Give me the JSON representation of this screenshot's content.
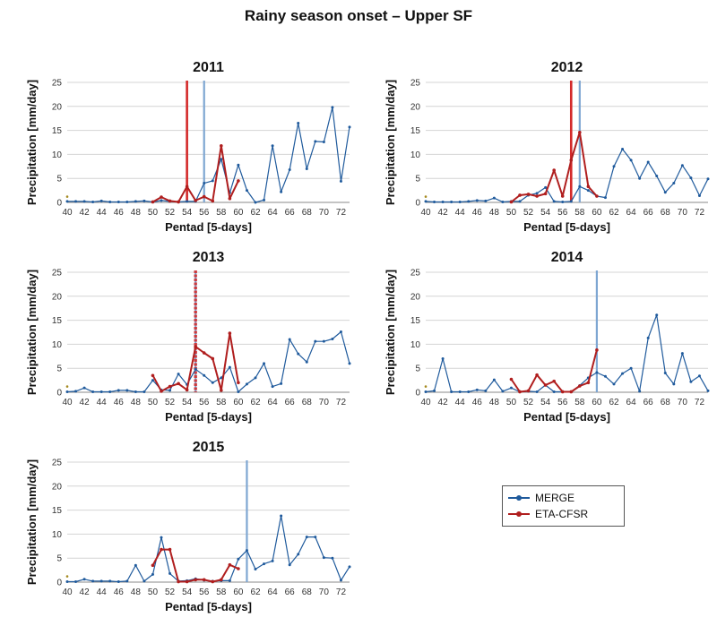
{
  "page": {
    "title": "Rainy season onset – Upper SF"
  },
  "colors": {
    "merge": "#1f5a9c",
    "eta": "#b01e1e",
    "merge_onset": "#7ea6d2",
    "eta_onset": "#d42a2a",
    "star": "#a58a1f"
  },
  "legend": {
    "merge_label": "MERGE",
    "eta_label": "ETA-CFSR"
  },
  "chart_data": [
    {
      "type": "line",
      "title": "2011",
      "xlabel": "Pentad [5-days]",
      "ylabel": "Precipitation [mm/day]",
      "xlim": [
        40,
        73
      ],
      "ylim": [
        0,
        25
      ],
      "xticks": [
        "40",
        "42",
        "44",
        "46",
        "48",
        "50",
        "52",
        "54",
        "56",
        "58",
        "60",
        "62",
        "64",
        "66",
        "68",
        "70",
        "72"
      ],
      "yticks": [
        "0",
        "5",
        "10",
        "15",
        "20",
        "25"
      ],
      "grid": true,
      "series": [
        {
          "name": "MERGE",
          "x": [
            40,
            41,
            42,
            43,
            44,
            45,
            46,
            47,
            48,
            49,
            50,
            51,
            52,
            53,
            54,
            55,
            56,
            57,
            58,
            59,
            60,
            61,
            62,
            63,
            64,
            65,
            66,
            67,
            68,
            69,
            70,
            71,
            72,
            73
          ],
          "values": [
            0.2,
            0.2,
            0.2,
            0.1,
            0.3,
            0.1,
            0.1,
            0.1,
            0.2,
            0.3,
            0.1,
            0.4,
            0.2,
            0.1,
            0.2,
            0.2,
            4,
            4.5,
            9,
            2,
            7.8,
            2.5,
            0,
            0.5,
            11.8,
            2.2,
            6.8,
            16.5,
            7,
            12.7,
            12.6,
            19.8,
            4.4,
            15.7
          ]
        },
        {
          "name": "ETA-CFSR",
          "x": [
            50,
            51,
            52,
            53,
            54,
            55,
            56,
            57,
            58,
            59,
            60
          ],
          "values": [
            0.1,
            1.1,
            0.3,
            0.1,
            3.3,
            0.4,
            1.2,
            0.3,
            11.8,
            0.8,
            4.5
          ]
        }
      ],
      "onset": {
        "MERGE": 56,
        "ETA-CFSR": 54
      }
    },
    {
      "type": "line",
      "title": "2012",
      "xlabel": "Pentad [5-days]",
      "ylabel": "Precipitation [mm/day]",
      "xlim": [
        40,
        73
      ],
      "ylim": [
        0,
        25
      ],
      "xticks": [
        "40",
        "42",
        "44",
        "46",
        "48",
        "50",
        "52",
        "54",
        "56",
        "58",
        "60",
        "62",
        "64",
        "66",
        "68",
        "70",
        "72"
      ],
      "yticks": [
        "0",
        "5",
        "10",
        "15",
        "20",
        "25"
      ],
      "grid": true,
      "series": [
        {
          "name": "MERGE",
          "x": [
            40,
            41,
            42,
            43,
            44,
            45,
            46,
            47,
            48,
            49,
            50,
            51,
            52,
            53,
            54,
            55,
            56,
            57,
            58,
            59,
            60,
            61,
            62,
            63,
            64,
            65,
            66,
            67,
            68,
            69,
            70,
            71,
            72,
            73
          ],
          "values": [
            0.2,
            0.1,
            0.1,
            0.1,
            0.1,
            0.2,
            0.4,
            0.3,
            0.9,
            0.1,
            0.2,
            0.2,
            1.5,
            1.9,
            3.1,
            0.2,
            0.1,
            0.2,
            3.3,
            2.5,
            1.3,
            1,
            7.5,
            11.1,
            8.8,
            5,
            8.4,
            5.5,
            2.1,
            4,
            7.7,
            5.1,
            1.4,
            4.9
          ]
        },
        {
          "name": "ETA-CFSR",
          "x": [
            50,
            51,
            52,
            53,
            54,
            55,
            56,
            57,
            58,
            59,
            60
          ],
          "values": [
            0.1,
            1.5,
            1.7,
            1.3,
            1.8,
            6.7,
            1.3,
            8.8,
            14.6,
            3.3,
            1.3
          ]
        }
      ],
      "onset": {
        "MERGE": 58,
        "ETA-CFSR": 57
      }
    },
    {
      "type": "line",
      "title": "2013",
      "xlabel": "Pentad [5-days]",
      "ylabel": "Precipitation [mm/day]",
      "xlim": [
        40,
        73
      ],
      "ylim": [
        0,
        25
      ],
      "xticks": [
        "40",
        "42",
        "44",
        "46",
        "48",
        "50",
        "52",
        "54",
        "56",
        "58",
        "60",
        "62",
        "64",
        "66",
        "68",
        "70",
        "72"
      ],
      "yticks": [
        "0",
        "5",
        "10",
        "15",
        "20",
        "25"
      ],
      "grid": true,
      "series": [
        {
          "name": "MERGE",
          "x": [
            40,
            41,
            42,
            43,
            44,
            45,
            46,
            47,
            48,
            49,
            50,
            51,
            52,
            53,
            54,
            55,
            56,
            57,
            58,
            59,
            60,
            61,
            62,
            63,
            64,
            65,
            66,
            67,
            68,
            69,
            70,
            71,
            72,
            73
          ],
          "values": [
            0.1,
            0.2,
            0.9,
            0.1,
            0.1,
            0.1,
            0.4,
            0.4,
            0.1,
            0.1,
            2.5,
            0.5,
            0.4,
            3.8,
            1.6,
            4.8,
            3.5,
            2,
            3,
            5.2,
            0.1,
            1.7,
            3,
            6,
            1.2,
            1.8,
            11,
            8,
            6.3,
            10.6,
            10.6,
            11.1,
            12.6,
            6
          ]
        },
        {
          "name": "ETA-CFSR",
          "x": [
            50,
            51,
            52,
            53,
            54,
            55,
            56,
            57,
            58,
            59,
            60
          ],
          "values": [
            3.5,
            0.2,
            1.2,
            1.8,
            0.5,
            9.5,
            8.2,
            7,
            0.4,
            12.3,
            2
          ]
        }
      ],
      "onset": {
        "MERGE": 55,
        "ETA-CFSR": 55
      }
    },
    {
      "type": "line",
      "title": "2014",
      "xlabel": "Pentad [5-days]",
      "ylabel": "Precipitation [mm/day]",
      "xlim": [
        40,
        73
      ],
      "ylim": [
        0,
        25
      ],
      "xticks": [
        "40",
        "42",
        "44",
        "46",
        "48",
        "50",
        "52",
        "54",
        "56",
        "58",
        "60",
        "62",
        "64",
        "66",
        "68",
        "70",
        "72"
      ],
      "yticks": [
        "0",
        "5",
        "10",
        "15",
        "20",
        "25"
      ],
      "grid": true,
      "series": [
        {
          "name": "MERGE",
          "x": [
            40,
            41,
            42,
            43,
            44,
            45,
            46,
            47,
            48,
            49,
            50,
            51,
            52,
            53,
            54,
            55,
            56,
            57,
            58,
            59,
            60,
            61,
            62,
            63,
            64,
            65,
            66,
            67,
            68,
            69,
            70,
            71,
            72,
            73
          ],
          "values": [
            0.1,
            0.3,
            7,
            0.1,
            0.1,
            0.1,
            0.5,
            0.3,
            2.6,
            0.2,
            0.9,
            0.1,
            0.2,
            0.1,
            1.5,
            0.1,
            0.1,
            0.1,
            1.4,
            3,
            4.1,
            3.3,
            1.7,
            3.9,
            5,
            0.2,
            11.3,
            16.1,
            4,
            1.7,
            8.1,
            2.2,
            3.4,
            0.3
          ]
        },
        {
          "name": "ETA-CFSR",
          "x": [
            50,
            51,
            52,
            53,
            54,
            55,
            56,
            57,
            58,
            59,
            60
          ],
          "values": [
            2.7,
            0.1,
            0.3,
            3.6,
            1.5,
            2.3,
            0.1,
            0.1,
            1.3,
            2,
            8.8
          ]
        }
      ],
      "onset": {
        "MERGE": 60,
        "ETA-CFSR": null
      }
    },
    {
      "type": "line",
      "title": "2015",
      "xlabel": "Pentad [5-days]",
      "ylabel": "Precipitation [mm/day]",
      "xlim": [
        40,
        73
      ],
      "ylim": [
        0,
        25
      ],
      "xticks": [
        "40",
        "42",
        "44",
        "46",
        "48",
        "50",
        "52",
        "54",
        "56",
        "58",
        "60",
        "62",
        "64",
        "66",
        "68",
        "70",
        "72"
      ],
      "yticks": [
        "0",
        "5",
        "10",
        "15",
        "20",
        "25"
      ],
      "grid": true,
      "series": [
        {
          "name": "MERGE",
          "x": [
            40,
            41,
            42,
            43,
            44,
            45,
            46,
            47,
            48,
            49,
            50,
            51,
            52,
            53,
            54,
            55,
            56,
            57,
            58,
            59,
            60,
            61,
            62,
            63,
            64,
            65,
            66,
            67,
            68,
            69,
            70,
            71,
            72,
            73
          ],
          "values": [
            0.1,
            0.1,
            0.6,
            0.2,
            0.2,
            0.2,
            0.1,
            0.2,
            3.5,
            0.2,
            1.6,
            9.3,
            1.8,
            0.2,
            0.3,
            0.7,
            0.4,
            0.2,
            0.3,
            0.3,
            4.8,
            6.6,
            2.7,
            3.8,
            4.4,
            13.8,
            3.6,
            5.8,
            9.4,
            9.4,
            5.1,
            5,
            0.4,
            3.2
          ]
        },
        {
          "name": "ETA-CFSR",
          "x": [
            50,
            51,
            52,
            53,
            54,
            55,
            56,
            57,
            58,
            59,
            60
          ],
          "values": [
            3.5,
            6.8,
            6.8,
            0.1,
            0.1,
            0.5,
            0.5,
            0.1,
            0.5,
            3.6,
            2.8
          ]
        }
      ],
      "onset": {
        "MERGE": 61,
        "ETA-CFSR": null
      }
    }
  ]
}
